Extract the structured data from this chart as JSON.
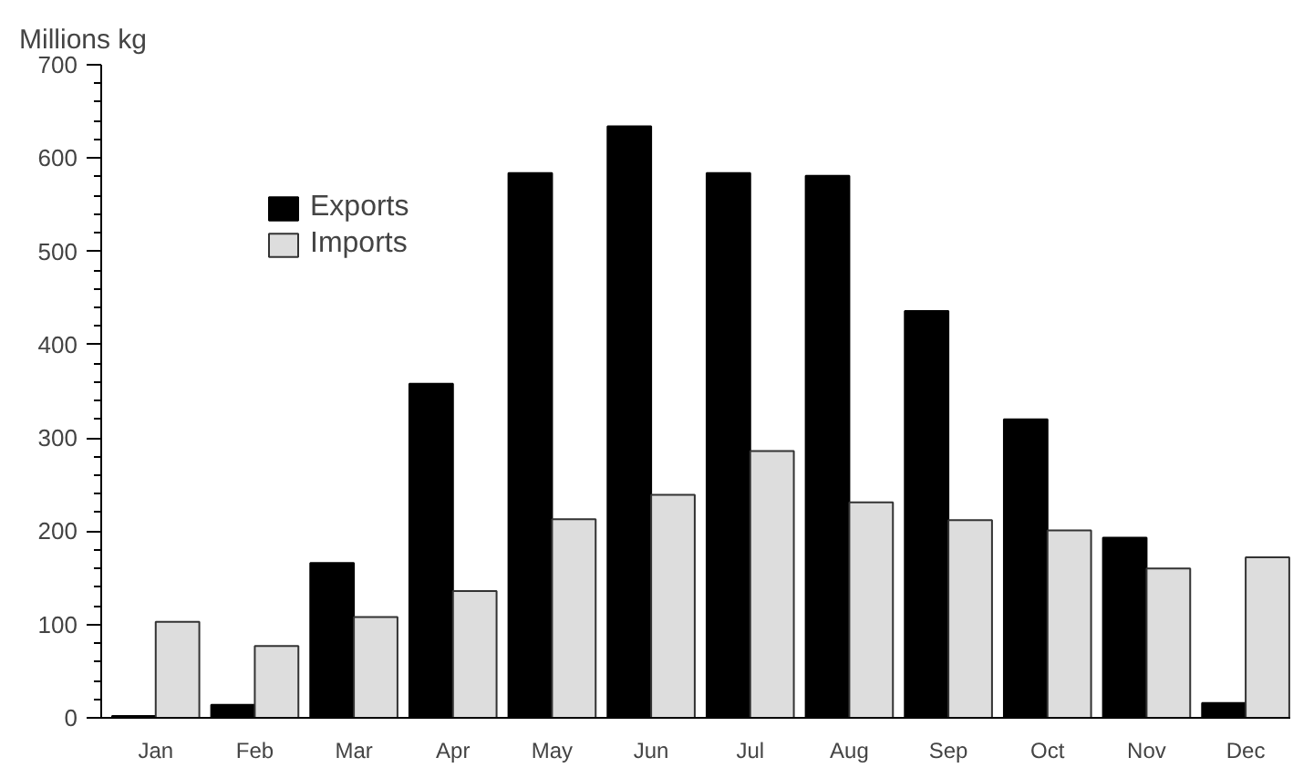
{
  "chart_data": {
    "type": "bar",
    "ylabel": "Millions kg",
    "categories": [
      "Jan",
      "Feb",
      "Mar",
      "Apr",
      "May",
      "Jun",
      "Jul",
      "Aug",
      "Sep",
      "Oct",
      "Nov",
      "Dec"
    ],
    "series": [
      {
        "name": "Exports",
        "color": "#000000",
        "values": [
          2,
          14,
          166,
          358,
          584,
          634,
          584,
          581,
          436,
          320,
          193,
          16
        ]
      },
      {
        "name": "Imports",
        "color": "#dddddd",
        "values": [
          103,
          77,
          108,
          136,
          213,
          239,
          286,
          231,
          212,
          201,
          160,
          172
        ]
      }
    ],
    "ylim": [
      0,
      700
    ],
    "yticks": [
      0,
      100,
      200,
      300,
      400,
      500,
      600,
      700
    ],
    "grid": false,
    "legend": "top left"
  }
}
